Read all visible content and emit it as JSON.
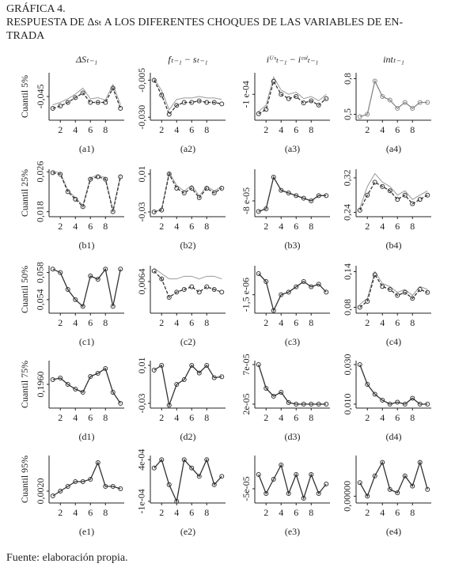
{
  "header": {
    "label": "GRÁFICA 4.",
    "title": [
      "RESPUESTA DE Δsₜ A LOS DIFERENTES CHOQUES DE LAS VARIABLES DE EN-",
      "TRADA"
    ]
  },
  "column_headers": [
    "ΔSₜ₋₁",
    "fₜ₋₁ − sₜ₋₁",
    "iᵁˢₜ₋₁ − iᶜᵒˡₜ₋₁",
    "intₜ₋₁"
  ],
  "source": "Fuente: elaboración propia.",
  "chart_data": [
    {
      "type": "line",
      "panel_label": "(a1)",
      "y_label": "Cuantil 5%",
      "x": [
        1,
        2,
        3,
        4,
        5,
        6,
        7,
        8,
        9,
        10
      ],
      "xlim": [
        0.5,
        10.5
      ],
      "xticks": [
        2,
        4,
        6,
        8
      ],
      "ylim": [
        -0.065,
        -0.025
      ],
      "yticks": [
        {
          "value": -0.045,
          "label": "-0,045"
        }
      ],
      "series": [
        {
          "color": "#333333",
          "values": [
            -0.055,
            -0.053,
            -0.05,
            -0.046,
            -0.042,
            -0.05,
            -0.05,
            -0.05,
            -0.038,
            -0.055
          ]
        },
        {
          "color": "#999999",
          "values": [
            -0.052,
            -0.05,
            -0.047,
            -0.043,
            -0.038,
            -0.047,
            -0.046,
            -0.048,
            -0.035,
            -0.052
          ]
        }
      ]
    },
    {
      "type": "line",
      "panel_label": "(a2)",
      "x": [
        1,
        2,
        3,
        4,
        5,
        6,
        7,
        8,
        9,
        10
      ],
      "xlim": [
        0.5,
        10.5
      ],
      "xticks": [
        2,
        4,
        6,
        8
      ],
      "ylim": [
        -0.032,
        0
      ],
      "yticks": [
        {
          "value": -0.005,
          "label": "-0,005"
        },
        {
          "value": -0.03,
          "label": "-0,030"
        }
      ],
      "series": [
        {
          "color": "#333333",
          "values": [
            -0.005,
            -0.015,
            -0.028,
            -0.022,
            -0.02,
            -0.02,
            -0.019,
            -0.02,
            -0.02,
            -0.021
          ]
        },
        {
          "color": "#999999",
          "values": [
            -0.004,
            -0.012,
            -0.025,
            -0.018,
            -0.017,
            -0.017,
            -0.016,
            -0.017,
            -0.017,
            -0.018
          ]
        }
      ]
    },
    {
      "type": "line",
      "panel_label": "(a3)",
      "x": [
        1,
        2,
        3,
        4,
        5,
        6,
        7,
        8,
        9,
        10
      ],
      "xlim": [
        0.5,
        10.5
      ],
      "xticks": [
        2,
        4,
        6,
        8
      ],
      "ylim": [
        -0.00022,
        0
      ],
      "yticks": [
        {
          "value": -0.0001,
          "label": "-1 e-04"
        }
      ],
      "series": [
        {
          "color": "#333333",
          "values": [
            -0.00019,
            -0.00017,
            -4e-05,
            -0.0001,
            -0.00012,
            -0.00011,
            -0.00014,
            -0.00013,
            -0.00015,
            -0.00012
          ]
        },
        {
          "color": "#999999",
          "values": [
            -0.00018,
            -0.00015,
            -2e-05,
            -8e-05,
            -0.0001,
            -9e-05,
            -0.00012,
            -0.00011,
            -0.00013,
            -0.0001
          ]
        }
      ]
    },
    {
      "type": "line",
      "panel_label": "(a4)",
      "x": [
        1,
        2,
        3,
        4,
        5,
        6,
        7,
        8,
        9,
        10
      ],
      "xlim": [
        0.5,
        10.5
      ],
      "xticks": [
        2,
        4,
        6,
        8
      ],
      "ylim": [
        0.45,
        0.85
      ],
      "yticks": [
        {
          "value": 0.5,
          "label": "0,5"
        },
        {
          "value": 0.8,
          "label": "0,8"
        }
      ],
      "series": [
        {
          "color": "#888888",
          "values": [
            0.48,
            0.5,
            0.78,
            0.65,
            0.62,
            0.55,
            0.6,
            0.55,
            0.6,
            0.6
          ]
        }
      ]
    },
    {
      "type": "line",
      "panel_label": "(b1)",
      "y_label": "Cuantil 25%",
      "x": [
        1,
        2,
        3,
        4,
        5,
        6,
        7,
        8,
        9,
        10
      ],
      "xlim": [
        0.5,
        10.5
      ],
      "xticks": [
        2,
        4,
        6,
        8
      ],
      "ylim": [
        0.017,
        0.0265
      ],
      "yticks": [
        {
          "value": 0.026,
          "label": "0,026"
        },
        {
          "value": 0.018,
          "label": "0,018"
        }
      ],
      "series": [
        {
          "color": "#333333",
          "values": [
            0.0258,
            0.0255,
            0.022,
            0.0205,
            0.019,
            0.0245,
            0.025,
            0.0245,
            0.018,
            0.025
          ]
        },
        {
          "color": "#999999",
          "values": [
            0.0261,
            0.0258,
            0.0223,
            0.0208,
            0.0193,
            0.0248,
            0.0253,
            0.0248,
            0.0183,
            0.0253
          ]
        }
      ]
    },
    {
      "type": "line",
      "panel_label": "(b2)",
      "x": [
        1,
        2,
        3,
        4,
        5,
        6,
        7,
        8,
        9,
        10
      ],
      "xlim": [
        0.5,
        10.5
      ],
      "xticks": [
        2,
        4,
        6,
        8
      ],
      "ylim": [
        -0.035,
        0.015
      ],
      "yticks": [
        {
          "value": 0.01,
          "label": "0,01"
        },
        {
          "value": -0.03,
          "label": "-0,03"
        }
      ],
      "series": [
        {
          "color": "#333333",
          "values": [
            -0.03,
            -0.028,
            0.01,
            -0.005,
            -0.01,
            -0.005,
            -0.015,
            -0.005,
            -0.01,
            -0.005
          ]
        },
        {
          "color": "#999999",
          "values": [
            -0.03,
            -0.027,
            0.012,
            -0.002,
            -0.008,
            -0.002,
            -0.013,
            -0.003,
            -0.008,
            -0.003
          ]
        }
      ]
    },
    {
      "type": "line",
      "panel_label": "(b3)",
      "x": [
        1,
        2,
        3,
        4,
        5,
        6,
        7,
        8,
        9,
        10
      ],
      "xlim": [
        0.5,
        10.5
      ],
      "xticks": [
        2,
        4,
        6,
        8
      ],
      "ylim": [
        -0.00011,
        -2e-05
      ],
      "yticks": [
        {
          "value": -8e-05,
          "label": "-8 e-05"
        }
      ],
      "series": [
        {
          "color": "#333333",
          "values": [
            -0.0001,
            -9.5e-05,
            -3.5e-05,
            -6e-05,
            -6.5e-05,
            -7e-05,
            -7.5e-05,
            -8e-05,
            -7e-05,
            -7e-05
          ]
        }
      ]
    },
    {
      "type": "line",
      "panel_label": "(b4)",
      "x": [
        1,
        2,
        3,
        4,
        5,
        6,
        7,
        8,
        9,
        10
      ],
      "xlim": [
        0.5,
        10.5
      ],
      "xticks": [
        2,
        4,
        6,
        8
      ],
      "ylim": [
        0.23,
        0.34
      ],
      "yticks": [
        {
          "value": 0.32,
          "label": "0,32"
        },
        {
          "value": 0.24,
          "label": "0,24"
        }
      ],
      "series": [
        {
          "color": "#333333",
          "values": [
            0.245,
            0.28,
            0.31,
            0.3,
            0.29,
            0.27,
            0.28,
            0.26,
            0.27,
            0.28
          ]
        },
        {
          "color": "#999999",
          "values": [
            0.25,
            0.3,
            0.33,
            0.31,
            0.3,
            0.28,
            0.29,
            0.27,
            0.28,
            0.29
          ]
        }
      ]
    },
    {
      "type": "line",
      "panel_label": "(c1)",
      "y_label": "Cuantil 50%",
      "x": [
        1,
        2,
        3,
        4,
        5,
        6,
        7,
        8,
        9,
        10
      ],
      "xlim": [
        0.5,
        10.5
      ],
      "xticks": [
        2,
        4,
        6,
        8
      ],
      "ylim": [
        0.052,
        0.059
      ],
      "yticks": [
        {
          "value": 0.058,
          "label": "0,058"
        },
        {
          "value": 0.054,
          "label": "0,054"
        }
      ],
      "series": [
        {
          "color": "#333333",
          "values": [
            0.0585,
            0.058,
            0.0555,
            0.054,
            0.053,
            0.0575,
            0.057,
            0.0585,
            0.053,
            0.0585
          ]
        }
      ]
    },
    {
      "type": "line",
      "panel_label": "(c2)",
      "x": [
        1,
        2,
        3,
        4,
        5,
        6,
        7,
        8,
        9,
        10
      ],
      "xlim": [
        0.5,
        10.5
      ],
      "xticks": [
        2,
        4,
        6,
        8
      ],
      "ylim": [
        0.0052,
        0.007
      ],
      "yticks": [
        {
          "value": 0.0064,
          "label": "0,0064"
        }
      ],
      "series": [
        {
          "color": "#333333",
          "values": [
            0.0068,
            0.0065,
            0.0058,
            0.006,
            0.0061,
            0.0062,
            0.006,
            0.0062,
            0.0061,
            0.006
          ]
        },
        {
          "color": "#999999",
          "values": [
            0.0069,
            0.0067,
            0.0065,
            0.0065,
            0.0066,
            0.0066,
            0.0065,
            0.0066,
            0.0066,
            0.0065
          ]
        }
      ]
    },
    {
      "type": "line",
      "panel_label": "(c3)",
      "x": [
        1,
        2,
        3,
        4,
        5,
        6,
        7,
        8,
        9,
        10
      ],
      "xlim": [
        0.5,
        10.5
      ],
      "xticks": [
        2,
        4,
        6,
        8
      ],
      "ylim": [
        -2.2e-06,
        -4e-07
      ],
      "yticks": [
        {
          "value": -1.5e-06,
          "label": "-1,5 e-06"
        }
      ],
      "series": [
        {
          "color": "#333333",
          "values": [
            -7e-07,
            -1e-06,
            -2.1e-06,
            -1.5e-06,
            -1.4e-06,
            -1.2e-06,
            -1e-06,
            -1.2e-06,
            -1.1e-06,
            -1.4e-06
          ]
        }
      ]
    },
    {
      "type": "line",
      "panel_label": "(c4)",
      "x": [
        1,
        2,
        3,
        4,
        5,
        6,
        7,
        8,
        9,
        10
      ],
      "xlim": [
        0.5,
        10.5
      ],
      "xticks": [
        2,
        4,
        6,
        8
      ],
      "ylim": [
        0.07,
        0.15
      ],
      "yticks": [
        {
          "value": 0.14,
          "label": "0,14"
        },
        {
          "value": 0.08,
          "label": "0,08"
        }
      ],
      "series": [
        {
          "color": "#333333",
          "values": [
            0.08,
            0.09,
            0.135,
            0.115,
            0.11,
            0.1,
            0.105,
            0.095,
            0.11,
            0.105
          ]
        },
        {
          "color": "#999999",
          "values": [
            0.085,
            0.095,
            0.14,
            0.12,
            0.115,
            0.105,
            0.11,
            0.1,
            0.115,
            0.11
          ]
        }
      ]
    },
    {
      "type": "line",
      "panel_label": "(d1)",
      "y_label": "Cuantil 75%",
      "x": [
        1,
        2,
        3,
        4,
        5,
        6,
        7,
        8,
        9,
        10
      ],
      "xlim": [
        0.5,
        10.5
      ],
      "xticks": [
        2,
        4,
        6,
        8
      ],
      "ylim": [
        0.1945,
        0.1975
      ],
      "yticks": [
        {
          "value": 0.196,
          "label": "0,1960"
        }
      ],
      "series": [
        {
          "color": "#333333",
          "values": [
            0.1963,
            0.1964,
            0.196,
            0.1957,
            0.1955,
            0.1965,
            0.1967,
            0.197,
            0.1955,
            0.1948
          ]
        }
      ]
    },
    {
      "type": "line",
      "panel_label": "(d2)",
      "x": [
        1,
        2,
        3,
        4,
        5,
        6,
        7,
        8,
        9,
        10
      ],
      "xlim": [
        0.5,
        10.5
      ],
      "xticks": [
        2,
        4,
        6,
        8
      ],
      "ylim": [
        -0.035,
        0.015
      ],
      "yticks": [
        {
          "value": 0.01,
          "label": "0,01"
        },
        {
          "value": -0.03,
          "label": "-0,03"
        }
      ],
      "series": [
        {
          "color": "#333333",
          "values": [
            0.005,
            0.01,
            -0.032,
            -0.01,
            -0.005,
            0.01,
            0.002,
            0.01,
            -0.003,
            -0.002
          ]
        }
      ]
    },
    {
      "type": "line",
      "panel_label": "(d3)",
      "x": [
        1,
        2,
        3,
        4,
        5,
        6,
        7,
        8,
        9,
        10
      ],
      "xlim": [
        0.5,
        10.5
      ],
      "xticks": [
        2,
        4,
        6,
        8
      ],
      "ylim": [
        1.5e-05,
        7.5e-05
      ],
      "yticks": [
        {
          "value": 7e-05,
          "label": "7e-05"
        },
        {
          "value": 2e-05,
          "label": "2e-05"
        }
      ],
      "series": [
        {
          "color": "#333333",
          "values": [
            7e-05,
            4e-05,
            3e-05,
            3.5e-05,
            2.2e-05,
            2e-05,
            2e-05,
            2e-05,
            2e-05,
            2e-05
          ]
        }
      ]
    },
    {
      "type": "line",
      "panel_label": "(d4)",
      "x": [
        1,
        2,
        3,
        4,
        5,
        6,
        7,
        8,
        9,
        10
      ],
      "xlim": [
        0.5,
        10.5
      ],
      "xticks": [
        2,
        4,
        6,
        8
      ],
      "ylim": [
        0.008,
        0.032
      ],
      "yticks": [
        {
          "value": 0.03,
          "label": "0,030"
        },
        {
          "value": 0.01,
          "label": "0,010"
        }
      ],
      "series": [
        {
          "color": "#333333",
          "values": [
            0.03,
            0.02,
            0.015,
            0.012,
            0.01,
            0.011,
            0.01,
            0.013,
            0.01,
            0.01
          ]
        }
      ]
    },
    {
      "type": "line",
      "panel_label": "(e1)",
      "y_label": "Cuantil 95%",
      "x": [
        1,
        2,
        3,
        4,
        5,
        6,
        7,
        8,
        9,
        10
      ],
      "xlim": [
        0.5,
        10.5
      ],
      "xticks": [
        2,
        4,
        6,
        8
      ],
      "ylim": [
        0.0015,
        0.0035
      ],
      "yticks": [
        {
          "value": 0.002,
          "label": "0,0020"
        }
      ],
      "series": [
        {
          "color": "#333333",
          "values": [
            0.0018,
            0.002,
            0.0022,
            0.0024,
            0.0024,
            0.0025,
            0.0032,
            0.0022,
            0.0022,
            0.0021
          ]
        }
      ]
    },
    {
      "type": "line",
      "panel_label": "(e2)",
      "x": [
        1,
        2,
        3,
        4,
        5,
        6,
        7,
        8,
        9,
        10
      ],
      "xlim": [
        0.5,
        10.5
      ],
      "xticks": [
        2,
        4,
        6,
        8
      ],
      "ylim": [
        -0.00012,
        0.00045
      ],
      "yticks": [
        {
          "value": 0.0004,
          "label": "4e-04"
        },
        {
          "value": -0.0001,
          "label": "-1e-04"
        }
      ],
      "series": [
        {
          "color": "#333333",
          "values": [
            0.0003,
            0.0004,
            0.0001,
            -0.0001,
            0.0004,
            0.0003,
            0.0002,
            0.0004,
            0.0001,
            0.0002
          ]
        }
      ]
    },
    {
      "type": "line",
      "panel_label": "(e3)",
      "x": [
        1,
        2,
        3,
        4,
        5,
        6,
        7,
        8,
        9,
        10
      ],
      "xlim": [
        0.5,
        10.5
      ],
      "xticks": [
        2,
        4,
        6,
        8
      ],
      "ylim": [
        -8e-05,
        2e-05
      ],
      "yticks": [
        {
          "value": -5e-05,
          "label": "-5e-05"
        }
      ],
      "series": [
        {
          "color": "#333333",
          "values": [
            -2e-05,
            -6e-05,
            -3e-05,
            0,
            -6e-05,
            -2e-05,
            -7e-05,
            -2e-05,
            -6e-05,
            -4e-05
          ]
        }
      ]
    },
    {
      "type": "line",
      "panel_label": "(e4)",
      "x": [
        1,
        2,
        3,
        4,
        5,
        6,
        7,
        8,
        9,
        10
      ],
      "xlim": [
        0.5,
        10.5
      ],
      "xticks": [
        2,
        4,
        6,
        8
      ],
      "ylim": [
        -2e-05,
        0.00012
      ],
      "yticks": [
        {
          "value": 0,
          "label": "0,00000"
        }
      ],
      "series": [
        {
          "color": "#333333",
          "values": [
            4e-05,
            0,
            6e-05,
            0.0001,
            2e-05,
            1e-05,
            6e-05,
            3e-05,
            0.0001,
            2e-05
          ]
        }
      ]
    }
  ]
}
